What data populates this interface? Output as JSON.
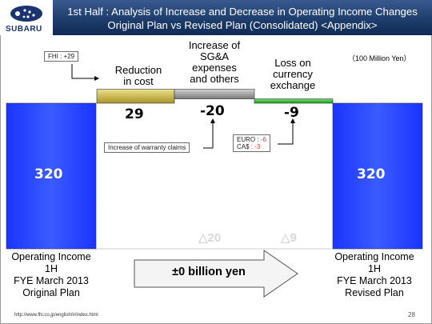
{
  "header": {
    "title_line1": "1st Half : Analysis of Increase and Decrease in Operating Income Changes",
    "title_line2": "Original Plan vs Revised Plan (Consolidated) <Appendix>",
    "logo": "SUBARU"
  },
  "unit_label": "（100 Million Yen）",
  "chart_data": {
    "type": "bar",
    "subtype": "waterfall",
    "unit": "100 Million Yen",
    "categories": [
      "Operating Income 1H FYE March 2013 Original Plan",
      "Reduction in cost",
      "Increase of SG&A expenses and others",
      "Loss on currency exchange",
      "Operating Income 1H FYE March 2013 Revised Plan"
    ],
    "bars": [
      {
        "label": "Original Plan",
        "value": 320,
        "kind": "total",
        "color": "#1f3cff"
      },
      {
        "label": "Reduction in cost",
        "value": 29,
        "kind": "delta",
        "color": "#c9b43a"
      },
      {
        "label": "Increase of SG&A expenses and others",
        "value": -20,
        "kind": "delta",
        "color": "#9a9a9a"
      },
      {
        "label": "Loss on currency exchange",
        "value": -9,
        "kind": "delta",
        "color": "#2db02d"
      },
      {
        "label": "Revised Plan",
        "value": 320,
        "kind": "total",
        "color": "#1f3cff"
      }
    ]
  },
  "labels": {
    "left_total": "320",
    "right_total": "320",
    "reduction_title": "Reduction\nin cost",
    "reduction_value": "29",
    "sga_title": "Increase of\nSG&A\nexpenses\nand others",
    "sga_value": "-20",
    "fx_title": "Loss on\ncurrency\nexchange",
    "fx_value": "-9",
    "fhi_note": "FHI : +29",
    "warranty_note": "Increase of warranty claims",
    "fx_euro_label": "EURO :",
    "fx_euro_value": "-6",
    "fx_cad_label": "CA$",
    "fx_cad_value": ": -3",
    "sga_bottom": "△20",
    "fx_bottom": "△9"
  },
  "bottom": {
    "left_line1": "Operating Income",
    "left_line2": "1H",
    "left_line3": "FYE March 2013",
    "left_line4": "Original Plan",
    "right_line1": "Operating Income",
    "right_line2": "1H",
    "right_line3": "FYE March 2013",
    "right_line4": "Revised Plan",
    "arrow_text": "±0 billion yen"
  },
  "footer": {
    "url": "http://www.fhi.co.jp/english/ir/index.html",
    "page": "28"
  }
}
